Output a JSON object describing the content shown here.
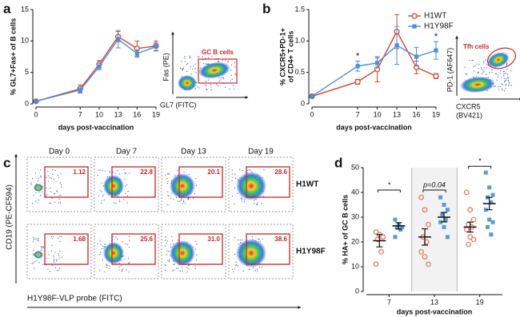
{
  "chart_data": [
    {
      "type": "line",
      "panel": "a",
      "ylabel": "% GL7+Fas+ of B cells",
      "xlabel": "days post-vaccination",
      "x": [
        0,
        7,
        10,
        13,
        16,
        19
      ],
      "xlim": [
        0,
        19
      ],
      "xticks": [
        0,
        7,
        10,
        13,
        16,
        19
      ],
      "ylim": [
        0,
        15
      ],
      "yticks": [
        0,
        5,
        10,
        15
      ],
      "series": [
        {
          "color": "#d9452f",
          "marker": "circle",
          "values": [
            0.4,
            2.4,
            6.3,
            10.7,
            8.8,
            9.2
          ],
          "errors": [
            0.2,
            0.6,
            0.6,
            0.8,
            1.2,
            0.8
          ]
        },
        {
          "color": "#4a8fd9",
          "marker": "square",
          "values": [
            0.4,
            2.2,
            5.9,
            10.3,
            8.0,
            9.1
          ],
          "errors": [
            0.2,
            0.5,
            0.5,
            1.4,
            0.6,
            0.6
          ]
        }
      ],
      "inset": {
        "gate_label": "GC B cells",
        "ylabel": "Fas (PE)",
        "xlabel_lines": [
          "GL7 (FITC)"
        ]
      }
    },
    {
      "type": "line",
      "panel": "b",
      "ylabel_lines": [
        "% CXCR5+PD-1+",
        "of CD4+ T cells"
      ],
      "xlabel": "days post-vaccination",
      "x": [
        0,
        7,
        10,
        13,
        16,
        19
      ],
      "xlim": [
        0,
        19
      ],
      "xticks": [
        0,
        7,
        10,
        13,
        16,
        19
      ],
      "ylim": [
        0,
        1.5
      ],
      "yticks": [
        0,
        0.5,
        {
          "value": 1,
          "label": "1.0"
        },
        1.5
      ],
      "series": [
        {
          "name": "H1WT",
          "color": "#d9452f",
          "marker": "circle",
          "values": [
            0.12,
            0.35,
            0.55,
            1.15,
            0.58,
            0.44
          ],
          "errors": [
            0.03,
            0.04,
            0.2,
            0.27,
            0.1,
            0.04
          ]
        },
        {
          "name": "H1Y98F",
          "color": "#4a8fd9",
          "marker": "square",
          "values": [
            0.12,
            0.6,
            0.65,
            0.93,
            0.75,
            0.85
          ],
          "errors": [
            0.03,
            0.08,
            0.08,
            0.3,
            0.15,
            0.14
          ]
        }
      ],
      "annotations": [
        {
          "x": 7,
          "text": "*"
        },
        {
          "x": 19,
          "text": "*"
        }
      ],
      "inset": {
        "gate_label": "Tfh cells",
        "ylabel": "PD-1 (AF647)",
        "xlabel_lines": [
          "CXCR5",
          "(BV421)"
        ]
      }
    },
    {
      "type": "flow-grid",
      "panel": "c",
      "columns": [
        "Day 0",
        "Day 7",
        "Day 13",
        "Day 19"
      ],
      "rows": [
        "H1WT",
        "H1Y98F"
      ],
      "values": [
        [
          1.12,
          22.8,
          20.1,
          28.6
        ],
        [
          1.68,
          25.6,
          31.0,
          38.6
        ]
      ],
      "value_labels": [
        [
          "1.12",
          "22.8",
          "20.1",
          "28.6"
        ],
        [
          "1.68",
          "25.6",
          "31.0",
          "38.6"
        ]
      ],
      "ylabel": "CD19 (PE-CF594)",
      "xlabel": "H1Y98F-VLP probe (FITC)"
    },
    {
      "type": "dot",
      "panel": "d",
      "ylabel": "% HA+ of GC B cells",
      "xlabel": "days post-vaccination",
      "categories": [
        "7",
        "13",
        "19"
      ],
      "ylim": [
        0,
        50
      ],
      "yticks": [
        0,
        10,
        20,
        30,
        40,
        50
      ],
      "series": [
        {
          "color": "#e8735a",
          "marker": "circle",
          "values": [
            [
              24,
              23,
              22,
              21,
              16,
              11
            ],
            [
              38,
              33,
              27,
              22,
              20,
              16,
              14,
              11
            ],
            [
              40,
              33,
              29,
              27,
              26,
              25,
              22,
              21,
              19
            ]
          ],
          "means": [
            20.5,
            22,
            26
          ],
          "errors": [
            2.5,
            3.3,
            2
          ]
        },
        {
          "color": "#5b9bd5",
          "marker": "square",
          "values": [
            [
              29,
              27,
              26,
              26,
              25,
              22
            ],
            [
              38,
              35,
              33,
              31,
              29,
              28,
              26,
              22
            ],
            [
              48,
              42,
              39,
              38,
              36,
              33,
              29,
              28,
              26,
              23
            ]
          ],
          "means": [
            26.5,
            30,
            35.5
          ],
          "errors": [
            1.3,
            1.9,
            2.5
          ]
        }
      ],
      "annotations": [
        "*",
        "p=0.04",
        "*"
      ]
    }
  ]
}
